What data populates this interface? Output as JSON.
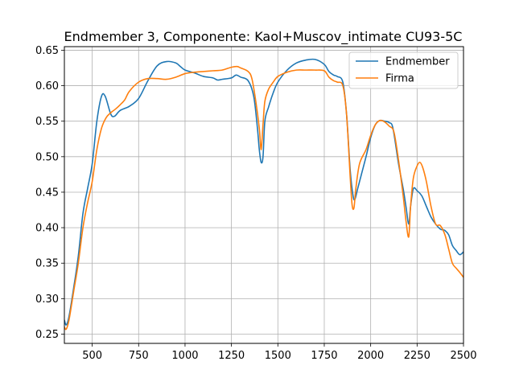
{
  "chart_data": {
    "type": "line",
    "title": "Endmember 3, Componente: Kaol+Muscov_intimate CU93-5C",
    "xlabel": "",
    "ylabel": "",
    "xlim": [
      350,
      2500
    ],
    "ylim": [
      0.237,
      0.655
    ],
    "xticks": [
      500,
      750,
      1000,
      1250,
      1500,
      1750,
      2000,
      2250,
      2500
    ],
    "yticks": [
      0.25,
      0.3,
      0.35,
      0.4,
      0.45,
      0.5,
      0.55,
      0.6,
      0.65
    ],
    "ytick_labels": [
      "0.25",
      "0.30",
      "0.35",
      "0.40",
      "0.45",
      "0.50",
      "0.55",
      "0.60",
      "0.65"
    ],
    "grid": true,
    "legend_position": "top-right",
    "series": [
      {
        "name": "Endmember",
        "color": "#1f77b4",
        "points": [
          [
            350,
            0.27
          ],
          [
            360,
            0.263
          ],
          [
            375,
            0.275
          ],
          [
            400,
            0.315
          ],
          [
            425,
            0.36
          ],
          [
            450,
            0.42
          ],
          [
            475,
            0.455
          ],
          [
            500,
            0.49
          ],
          [
            525,
            0.55
          ],
          [
            550,
            0.585
          ],
          [
            570,
            0.585
          ],
          [
            600,
            0.56
          ],
          [
            620,
            0.557
          ],
          [
            650,
            0.565
          ],
          [
            700,
            0.571
          ],
          [
            750,
            0.582
          ],
          [
            800,
            0.607
          ],
          [
            850,
            0.628
          ],
          [
            900,
            0.634
          ],
          [
            950,
            0.632
          ],
          [
            975,
            0.627
          ],
          [
            1000,
            0.622
          ],
          [
            1050,
            0.618
          ],
          [
            1100,
            0.613
          ],
          [
            1150,
            0.611
          ],
          [
            1175,
            0.608
          ],
          [
            1200,
            0.609
          ],
          [
            1250,
            0.611
          ],
          [
            1275,
            0.615
          ],
          [
            1300,
            0.612
          ],
          [
            1340,
            0.607
          ],
          [
            1370,
            0.585
          ],
          [
            1390,
            0.54
          ],
          [
            1400,
            0.51
          ],
          [
            1410,
            0.492
          ],
          [
            1420,
            0.5
          ],
          [
            1430,
            0.55
          ],
          [
            1450,
            0.57
          ],
          [
            1475,
            0.59
          ],
          [
            1500,
            0.605
          ],
          [
            1550,
            0.622
          ],
          [
            1600,
            0.632
          ],
          [
            1650,
            0.636
          ],
          [
            1700,
            0.637
          ],
          [
            1750,
            0.63
          ],
          [
            1775,
            0.62
          ],
          [
            1800,
            0.615
          ],
          [
            1820,
            0.613
          ],
          [
            1850,
            0.605
          ],
          [
            1870,
            0.56
          ],
          [
            1890,
            0.48
          ],
          [
            1905,
            0.445
          ],
          [
            1915,
            0.44
          ],
          [
            1930,
            0.455
          ],
          [
            1950,
            0.475
          ],
          [
            1975,
            0.5
          ],
          [
            2000,
            0.527
          ],
          [
            2025,
            0.545
          ],
          [
            2050,
            0.551
          ],
          [
            2075,
            0.55
          ],
          [
            2100,
            0.548
          ],
          [
            2120,
            0.54
          ],
          [
            2150,
            0.49
          ],
          [
            2175,
            0.455
          ],
          [
            2190,
            0.43
          ],
          [
            2205,
            0.405
          ],
          [
            2215,
            0.43
          ],
          [
            2230,
            0.455
          ],
          [
            2250,
            0.452
          ],
          [
            2275,
            0.445
          ],
          [
            2300,
            0.43
          ],
          [
            2325,
            0.415
          ],
          [
            2350,
            0.405
          ],
          [
            2375,
            0.398
          ],
          [
            2390,
            0.397
          ],
          [
            2400,
            0.396
          ],
          [
            2420,
            0.39
          ],
          [
            2440,
            0.375
          ],
          [
            2460,
            0.368
          ],
          [
            2480,
            0.362
          ],
          [
            2500,
            0.366
          ]
        ]
      },
      {
        "name": "Firma",
        "color": "#ff7f0e",
        "points": [
          [
            350,
            0.26
          ],
          [
            360,
            0.257
          ],
          [
            375,
            0.27
          ],
          [
            400,
            0.31
          ],
          [
            425,
            0.35
          ],
          [
            450,
            0.4
          ],
          [
            475,
            0.435
          ],
          [
            500,
            0.465
          ],
          [
            525,
            0.51
          ],
          [
            550,
            0.54
          ],
          [
            575,
            0.555
          ],
          [
            600,
            0.562
          ],
          [
            625,
            0.567
          ],
          [
            650,
            0.573
          ],
          [
            675,
            0.58
          ],
          [
            700,
            0.592
          ],
          [
            750,
            0.605
          ],
          [
            800,
            0.61
          ],
          [
            850,
            0.61
          ],
          [
            900,
            0.609
          ],
          [
            950,
            0.612
          ],
          [
            1000,
            0.617
          ],
          [
            1050,
            0.619
          ],
          [
            1100,
            0.62
          ],
          [
            1150,
            0.621
          ],
          [
            1200,
            0.622
          ],
          [
            1250,
            0.626
          ],
          [
            1280,
            0.627
          ],
          [
            1300,
            0.625
          ],
          [
            1340,
            0.62
          ],
          [
            1360,
            0.61
          ],
          [
            1380,
            0.58
          ],
          [
            1400,
            0.54
          ],
          [
            1410,
            0.51
          ],
          [
            1420,
            0.545
          ],
          [
            1430,
            0.578
          ],
          [
            1450,
            0.595
          ],
          [
            1475,
            0.605
          ],
          [
            1500,
            0.613
          ],
          [
            1550,
            0.619
          ],
          [
            1600,
            0.622
          ],
          [
            1650,
            0.622
          ],
          [
            1700,
            0.622
          ],
          [
            1750,
            0.621
          ],
          [
            1775,
            0.612
          ],
          [
            1800,
            0.607
          ],
          [
            1820,
            0.605
          ],
          [
            1850,
            0.6
          ],
          [
            1870,
            0.56
          ],
          [
            1890,
            0.47
          ],
          [
            1900,
            0.432
          ],
          [
            1910,
            0.428
          ],
          [
            1920,
            0.455
          ],
          [
            1940,
            0.49
          ],
          [
            1975,
            0.51
          ],
          [
            2000,
            0.53
          ],
          [
            2025,
            0.545
          ],
          [
            2050,
            0.551
          ],
          [
            2075,
            0.549
          ],
          [
            2100,
            0.543
          ],
          [
            2125,
            0.535
          ],
          [
            2150,
            0.495
          ],
          [
            2175,
            0.445
          ],
          [
            2190,
            0.41
          ],
          [
            2205,
            0.387
          ],
          [
            2215,
            0.43
          ],
          [
            2230,
            0.47
          ],
          [
            2250,
            0.487
          ],
          [
            2265,
            0.492
          ],
          [
            2280,
            0.485
          ],
          [
            2300,
            0.465
          ],
          [
            2325,
            0.43
          ],
          [
            2350,
            0.405
          ],
          [
            2375,
            0.403
          ],
          [
            2400,
            0.39
          ],
          [
            2420,
            0.37
          ],
          [
            2440,
            0.35
          ],
          [
            2460,
            0.343
          ],
          [
            2480,
            0.337
          ],
          [
            2500,
            0.33
          ]
        ]
      }
    ]
  }
}
